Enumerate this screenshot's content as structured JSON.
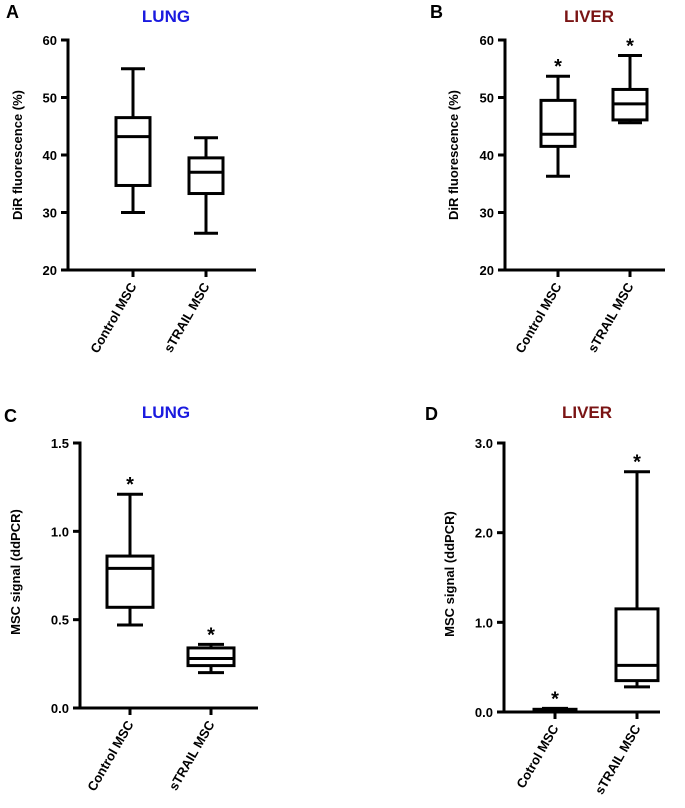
{
  "colors": {
    "lung_title": "#1a1adf",
    "liver_title": "#7a1414",
    "ink": "#000000"
  },
  "chart_data": [
    {
      "type": "boxplot",
      "panel_letter": "A",
      "title": "LUNG",
      "title_color": "#1a1adf",
      "ylabel": "DiR fluorescence (%)",
      "ylim": [
        20,
        60
      ],
      "yticks": [
        20,
        30,
        40,
        50,
        60
      ],
      "ytick_labels": [
        "20",
        "30",
        "40",
        "50",
        "60"
      ],
      "categories": [
        "Control MSC",
        "sTRAIL MSC"
      ],
      "boxes": [
        {
          "min": 30,
          "q1": 34.7,
          "median": 43.2,
          "q3": 46.5,
          "max": 55,
          "marker": ""
        },
        {
          "min": 26.4,
          "q1": 33.3,
          "median": 37,
          "q3": 39.5,
          "max": 43,
          "marker": ""
        }
      ]
    },
    {
      "type": "boxplot",
      "panel_letter": "B",
      "title": "LIVER",
      "title_color": "#7a1414",
      "ylabel": "DiR fluorescence (%)",
      "ylim": [
        20,
        60
      ],
      "yticks": [
        20,
        30,
        40,
        50,
        60
      ],
      "ytick_labels": [
        "20",
        "30",
        "40",
        "50",
        "60"
      ],
      "categories": [
        "Control MSC",
        "sTRAIL MSC"
      ],
      "boxes": [
        {
          "min": 36.3,
          "q1": 41.5,
          "median": 43.6,
          "q3": 49.5,
          "max": 53.7,
          "marker": "*"
        },
        {
          "min": 45.6,
          "q1": 46.1,
          "median": 48.9,
          "q3": 51.4,
          "max": 57.3,
          "marker": "*"
        }
      ]
    },
    {
      "type": "boxplot",
      "panel_letter": "C",
      "title": "LUNG",
      "title_color": "#1a1adf",
      "ylabel": "MSC signal (ddPCR)",
      "ylim": [
        0,
        1.5
      ],
      "yticks": [
        0,
        0.5,
        1.0,
        1.5
      ],
      "ytick_labels": [
        "0.0",
        "0.5",
        "1.0",
        "1.5"
      ],
      "categories": [
        "Control MSC",
        "sTRAIL MSC"
      ],
      "boxes": [
        {
          "min": 0.47,
          "q1": 0.57,
          "median": 0.79,
          "q3": 0.86,
          "max": 1.21,
          "marker": "*"
        },
        {
          "min": 0.2,
          "q1": 0.24,
          "median": 0.28,
          "q3": 0.34,
          "max": 0.36,
          "marker": "*"
        }
      ]
    },
    {
      "type": "boxplot",
      "panel_letter": "D",
      "title": "LIVER",
      "title_color": "#7a1414",
      "ylabel": "MSC signal (ddPCR)",
      "ylim": [
        0,
        3
      ],
      "yticks": [
        0,
        1,
        2,
        3
      ],
      "ytick_labels": [
        "0.0",
        "1.0",
        "2.0",
        "3.0"
      ],
      "categories": [
        "Cotrol MSC",
        "sTRAIL MSC"
      ],
      "boxes": [
        {
          "min": 0.0,
          "q1": 0.01,
          "median": 0.02,
          "q3": 0.03,
          "max": 0.04,
          "marker": "*"
        },
        {
          "min": 0.28,
          "q1": 0.35,
          "median": 0.52,
          "q3": 1.15,
          "max": 2.68,
          "marker": "*"
        }
      ]
    }
  ]
}
